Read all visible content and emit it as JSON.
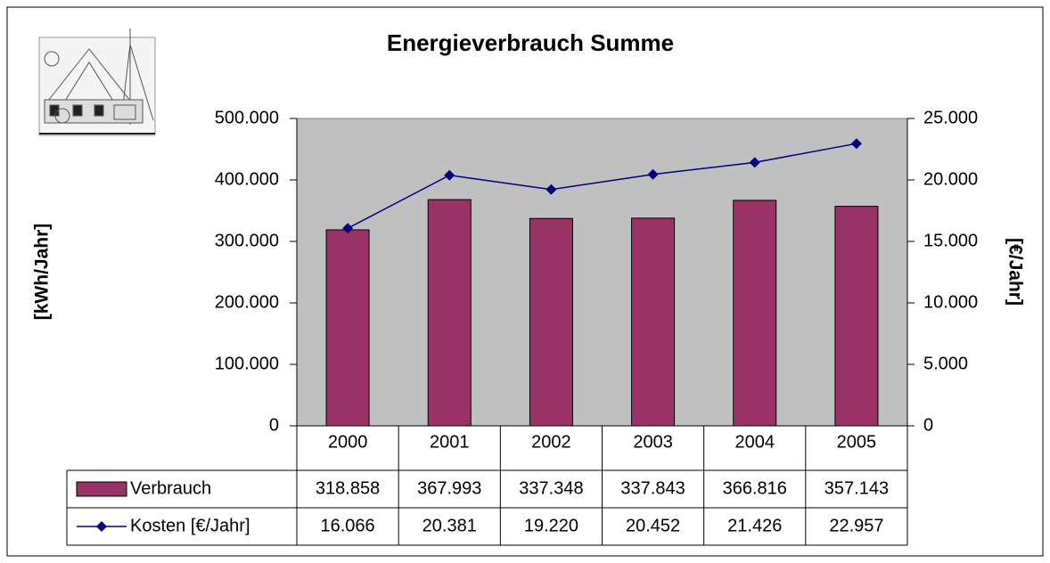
{
  "chart_data": {
    "type": "bar-line",
    "title": "Energieverbrauch Summe",
    "ylabel": "[kWh/Jahr]",
    "y2label": "[€/Jahr]",
    "categories": [
      "2000",
      "2001",
      "2002",
      "2003",
      "2004",
      "2005"
    ],
    "series": [
      {
        "name": "Verbrauch",
        "type": "bar",
        "color": "#993366",
        "values": [
          318858,
          367993,
          337348,
          337843,
          366816,
          357143
        ],
        "value_labels": [
          "318.858",
          "367.993",
          "337.348",
          "337.843",
          "366.816",
          "357.143"
        ]
      },
      {
        "name": "Kosten [€/Jahr]",
        "type": "line",
        "axis": "y2",
        "color": "#000080",
        "values": [
          16066,
          20381,
          19220,
          20452,
          21426,
          22957
        ],
        "value_labels": [
          "16.066",
          "20.381",
          "19.220",
          "20.452",
          "21.426",
          "22.957"
        ]
      }
    ],
    "ylim": [
      0,
      500000
    ],
    "yticks": [
      0,
      {
        "value": 100000,
        "label": "100.000"
      },
      {
        "value": 200000,
        "label": "200.000"
      },
      {
        "value": 300000,
        "label": "300.000"
      },
      {
        "value": 400000,
        "label": "400.000"
      },
      {
        "value": 500000,
        "label": "500.000"
      }
    ],
    "y2lim": [
      0,
      25000
    ],
    "y2ticks": [
      0,
      {
        "value": 5000,
        "label": "5.000"
      },
      {
        "value": 10000,
        "label": "10.000"
      },
      {
        "value": 15000,
        "label": "15.000"
      },
      {
        "value": 20000,
        "label": "20.000"
      },
      {
        "value": 25000,
        "label": "25.000"
      }
    ],
    "plot_background": "#c0c0c0"
  }
}
